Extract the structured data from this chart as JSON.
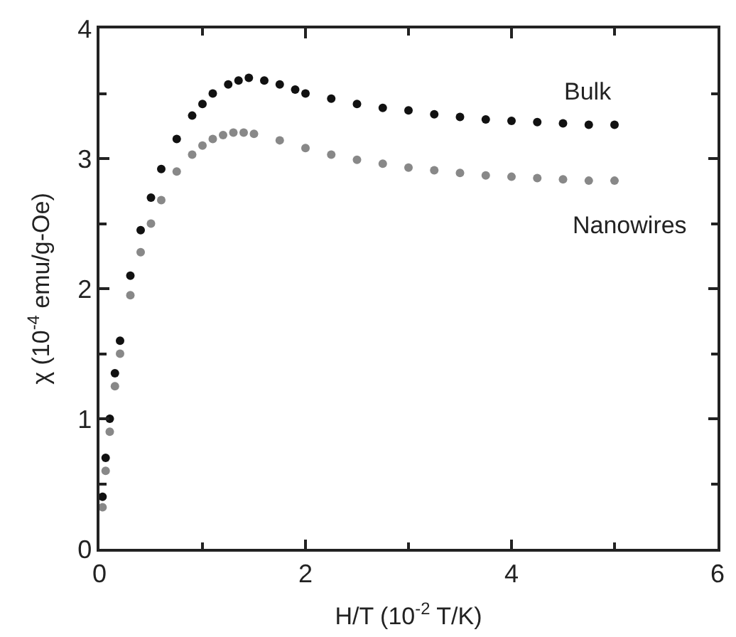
{
  "chart_data": {
    "type": "scatter",
    "xlabel": "H/T (10$^{-2}$ T/K)",
    "ylabel": "χ (10$^{-4}$ emu/g-Oe)",
    "xlim": [
      0,
      6
    ],
    "ylim": [
      0,
      4
    ],
    "xticks": [
      0,
      {
        "value": 1,
        "label": null
      },
      2,
      {
        "value": 3,
        "label": null
      },
      4,
      {
        "value": 5,
        "label": null
      },
      6
    ],
    "yticks": [
      0,
      {
        "value": 0.5,
        "label": null
      },
      1,
      {
        "value": 1.5,
        "label": null
      },
      2,
      {
        "value": 2.5,
        "label": null
      },
      3,
      {
        "value": 3.5,
        "label": null
      },
      4
    ],
    "marker": "circle",
    "series": [
      {
        "name": "Bulk",
        "color": "#111111",
        "x": [
          0.03,
          0.06,
          0.1,
          0.15,
          0.2,
          0.3,
          0.4,
          0.5,
          0.6,
          0.75,
          0.9,
          1.0,
          1.1,
          1.25,
          1.35,
          1.45,
          1.6,
          1.75,
          1.9,
          2.0,
          2.25,
          2.5,
          2.75,
          3.0,
          3.25,
          3.5,
          3.75,
          4.0,
          4.25,
          4.5,
          4.75,
          5.0
        ],
        "values": [
          0.4,
          0.7,
          1.0,
          1.35,
          1.6,
          2.1,
          2.45,
          2.7,
          2.92,
          3.15,
          3.33,
          3.42,
          3.5,
          3.57,
          3.6,
          3.62,
          3.6,
          3.57,
          3.53,
          3.5,
          3.46,
          3.42,
          3.39,
          3.37,
          3.34,
          3.32,
          3.3,
          3.29,
          3.28,
          3.27,
          3.26,
          3.26
        ]
      },
      {
        "name": "Nanowires",
        "color": "#888888",
        "x": [
          0.03,
          0.06,
          0.1,
          0.15,
          0.2,
          0.3,
          0.4,
          0.5,
          0.6,
          0.75,
          0.9,
          1.0,
          1.1,
          1.2,
          1.3,
          1.4,
          1.5,
          1.75,
          2.0,
          2.25,
          2.5,
          2.75,
          3.0,
          3.25,
          3.5,
          3.75,
          4.0,
          4.25,
          4.5,
          4.75,
          5.0
        ],
        "values": [
          0.32,
          0.6,
          0.9,
          1.25,
          1.5,
          1.95,
          2.28,
          2.5,
          2.68,
          2.9,
          3.03,
          3.1,
          3.15,
          3.18,
          3.2,
          3.2,
          3.19,
          3.14,
          3.08,
          3.03,
          2.99,
          2.96,
          2.93,
          2.91,
          2.89,
          2.87,
          2.86,
          2.85,
          2.84,
          2.83,
          2.83
        ]
      }
    ]
  }
}
